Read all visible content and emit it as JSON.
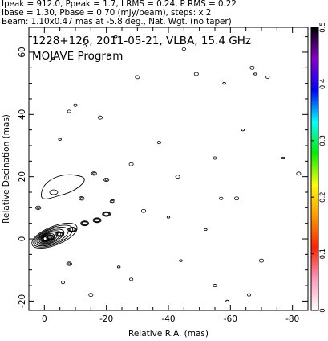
{
  "header": {
    "line1": "Ipeak = 912.0, Ppeak = 1.7, I RMS = 0.24, P RMS = 0.22",
    "line2": "Ibase = 1.30, Pbase = 0.70 (mJy/beam), steps: x 2",
    "line3": "Beam: 1.10x0.47 mas at -5.8 deg., Nat. Wgt. (no taper)"
  },
  "chart_data": {
    "type": "contour",
    "title": "1228+126, 2011-05-21, VLBA, 15.4 GHz",
    "subtitle": "MOJAVE Program",
    "xlabel": "Relative R.A. (mas)",
    "ylabel": "Relative Decination (mas)",
    "xlim": [
      5,
      -85
    ],
    "ylim": [
      -23,
      68
    ],
    "xticks": [
      0,
      -20,
      -40,
      -60,
      -80
    ],
    "yticks": [
      -20,
      0,
      20,
      40,
      60
    ],
    "colorbar": {
      "range": [
        0,
        0.5
      ],
      "ticks": [
        0,
        0.1,
        0.2,
        0.3,
        0.4,
        0.5
      ],
      "colors": [
        "#ffffff",
        "#ff99bb",
        "#ff2200",
        "#ff9900",
        "#ffff00",
        "#00ee00",
        "#00ffff",
        "#0000ff",
        "#8800cc",
        "#000000"
      ]
    },
    "core": {
      "x": 0,
      "y": 0,
      "peak_mJy_per_beam": 912.0
    },
    "jet_components": [
      {
        "x": -2,
        "y": 0.5
      },
      {
        "x": -5,
        "y": 1.5
      },
      {
        "x": -9,
        "y": 3
      },
      {
        "x": -13,
        "y": 5
      },
      {
        "x": -17,
        "y": 6
      },
      {
        "x": -20,
        "y": 8
      }
    ],
    "jet_features": [
      {
        "x": -12,
        "y": 13
      },
      {
        "x": -16,
        "y": 21
      },
      {
        "x": -20,
        "y": 19
      },
      {
        "x": -22,
        "y": 12
      },
      {
        "x": 2,
        "y": 10
      },
      {
        "x": -8,
        "y": -8
      }
    ],
    "noise_contours": [
      [
        -23,
        65
      ],
      [
        -45,
        61
      ],
      [
        -67,
        55
      ],
      [
        -68,
        53
      ],
      [
        -72,
        52
      ],
      [
        -49,
        53
      ],
      [
        -58,
        50
      ],
      [
        -8,
        41
      ],
      [
        -18,
        39
      ],
      [
        -5,
        32
      ],
      [
        -37,
        31
      ],
      [
        -28,
        24
      ],
      [
        -77,
        26
      ],
      [
        -55,
        26
      ],
      [
        -32,
        9
      ],
      [
        -40,
        7
      ],
      [
        -57,
        13
      ],
      [
        -62,
        13
      ],
      [
        -44,
        -7
      ],
      [
        -55,
        -15
      ],
      [
        -70,
        -7
      ],
      [
        -59,
        -20
      ],
      [
        -66,
        -18
      ],
      [
        -15,
        -18
      ],
      [
        -24,
        -9
      ],
      [
        -6,
        -14
      ],
      [
        -30,
        52
      ],
      [
        -3,
        58
      ],
      [
        -13,
        62
      ],
      [
        -82,
        21
      ],
      [
        -64,
        35
      ],
      [
        -28,
        -13
      ],
      [
        -43,
        20
      ],
      [
        -52,
        3
      ],
      [
        -10,
        43
      ]
    ]
  }
}
